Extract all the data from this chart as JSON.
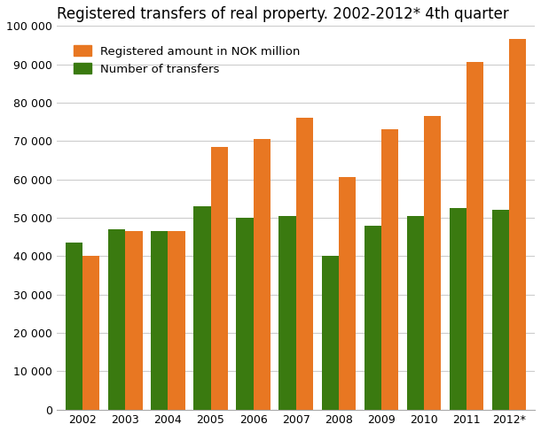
{
  "title": "Registered transfers of real property. 2002-2012* 4th quarter",
  "years": [
    "2002",
    "2003",
    "2004",
    "2005",
    "2006",
    "2007",
    "2008",
    "2009",
    "2010",
    "2011",
    "2012*"
  ],
  "registered_amount": [
    40000,
    46500,
    46500,
    68500,
    70500,
    76000,
    60500,
    73000,
    76500,
    90500,
    96500
  ],
  "number_of_transfers": [
    43500,
    47000,
    46500,
    53000,
    50000,
    50500,
    40000,
    48000,
    50500,
    52500,
    52000
  ],
  "color_orange": "#E87722",
  "color_green": "#3A7A10",
  "legend_orange": "Registered amount in NOK million",
  "legend_green": "Number of transfers",
  "ylim": [
    0,
    100000
  ],
  "yticks": [
    0,
    10000,
    20000,
    30000,
    40000,
    50000,
    60000,
    70000,
    80000,
    90000,
    100000
  ],
  "ytick_labels": [
    "0",
    "10 000",
    "20 000",
    "30 000",
    "40 000",
    "50 000",
    "60 000",
    "70 000",
    "80 000",
    "90 000",
    "100 000"
  ],
  "background_color": "#ffffff",
  "grid_color": "#cccccc",
  "title_fontsize": 12,
  "legend_fontsize": 9.5,
  "tick_fontsize": 9
}
